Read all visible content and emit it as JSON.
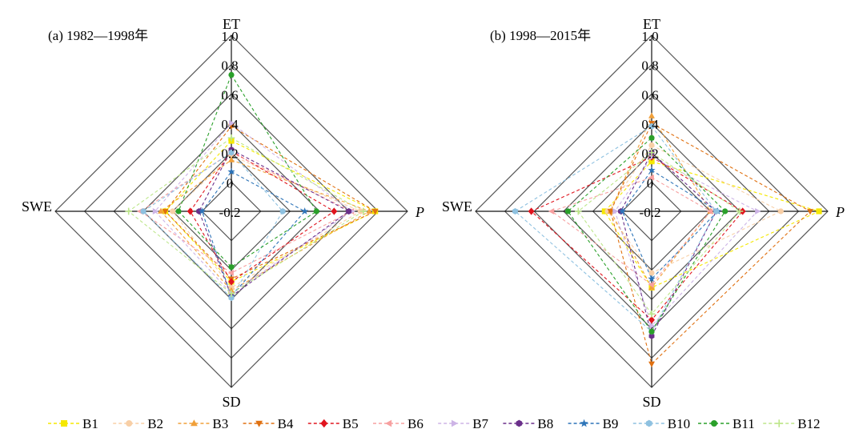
{
  "chart_data": [
    {
      "type": "radar",
      "title": "(a) 1982—1998年",
      "axes": [
        "ET",
        "P",
        "SD",
        "SWE"
      ],
      "r_ticks": [
        "-0.2",
        "0",
        "0.2",
        "0.4",
        "0.6",
        "0.8",
        "1.0"
      ],
      "rlim": [
        -0.2,
        1.0
      ],
      "grid": true,
      "legend": "bottom",
      "series": [
        {
          "name": "B1",
          "values": [
            0.28,
            0.78,
            0.28,
            0.25
          ]
        },
        {
          "name": "B2",
          "values": [
            0.18,
            0.68,
            0.32,
            0.2
          ]
        },
        {
          "name": "B3",
          "values": [
            0.15,
            0.74,
            0.34,
            0.28
          ]
        },
        {
          "name": "B4",
          "values": [
            0.38,
            0.78,
            0.26,
            0.25
          ]
        },
        {
          "name": "B5",
          "values": [
            0.21,
            0.5,
            0.28,
            0.08
          ]
        },
        {
          "name": "B6",
          "values": [
            0.2,
            0.62,
            0.22,
            0.42
          ]
        },
        {
          "name": "B7",
          "values": [
            0.4,
            0.62,
            0.36,
            0.32
          ]
        },
        {
          "name": "B8",
          "values": [
            0.22,
            0.6,
            0.38,
            0.02
          ]
        },
        {
          "name": "B9",
          "values": [
            0.07,
            0.3,
            0.38,
            0.0
          ]
        },
        {
          "name": "B10",
          "values": [
            0.2,
            0.15,
            0.39,
            0.4
          ]
        },
        {
          "name": "B11",
          "values": [
            0.73,
            0.38,
            0.18,
            0.16
          ]
        },
        {
          "name": "B12",
          "values": [
            0.3,
            0.7,
            0.36,
            0.5
          ]
        }
      ]
    },
    {
      "type": "radar",
      "title": "(b) 1998—2015年",
      "axes": [
        "ET",
        "P",
        "SD",
        "SWE"
      ],
      "r_ticks": [
        "-0.2",
        "0",
        "0.2",
        "0.4",
        "0.6",
        "0.8",
        "1.0"
      ],
      "rlim": [
        -0.2,
        1.0
      ],
      "grid": true,
      "legend": "bottom",
      "series": [
        {
          "name": "B1",
          "values": [
            0.14,
            0.94,
            0.32,
            0.12
          ]
        },
        {
          "name": "B2",
          "values": [
            0.25,
            0.68,
            0.22,
            0.1
          ]
        },
        {
          "name": "B3",
          "values": [
            0.45,
            0.2,
            0.32,
            0.08
          ]
        },
        {
          "name": "B4",
          "values": [
            0.4,
            0.88,
            0.84,
            0.08
          ]
        },
        {
          "name": "B5",
          "values": [
            0.17,
            0.42,
            0.54,
            0.62
          ]
        },
        {
          "name": "B6",
          "values": [
            0.03,
            0.2,
            0.3,
            0.48
          ]
        },
        {
          "name": "B7",
          "values": [
            0.17,
            0.52,
            0.58,
            0.05
          ]
        },
        {
          "name": "B8",
          "values": [
            0.2,
            0.24,
            0.65,
            0.01
          ]
        },
        {
          "name": "B9",
          "values": [
            0.08,
            0.25,
            0.26,
            0.0
          ]
        },
        {
          "name": "B10",
          "values": [
            0.38,
            0.24,
            0.62,
            0.73
          ]
        },
        {
          "name": "B11",
          "values": [
            0.3,
            0.3,
            0.62,
            0.37
          ]
        },
        {
          "name": "B12",
          "values": [
            0.2,
            0.4,
            0.5,
            0.3
          ]
        }
      ]
    }
  ],
  "legend_items": [
    {
      "name": "B1",
      "color": "#f5e800",
      "marker": "square"
    },
    {
      "name": "B2",
      "color": "#f8cfa6",
      "marker": "circle"
    },
    {
      "name": "B3",
      "color": "#f0a03a",
      "marker": "triangle-up"
    },
    {
      "name": "B4",
      "color": "#e07010",
      "marker": "triangle-down"
    },
    {
      "name": "B5",
      "color": "#e0141e",
      "marker": "diamond"
    },
    {
      "name": "B6",
      "color": "#f7a0a0",
      "marker": "triangle-left"
    },
    {
      "name": "B7",
      "color": "#cdb4e6",
      "marker": "triangle-right"
    },
    {
      "name": "B8",
      "color": "#6a2f8a",
      "marker": "hexagon"
    },
    {
      "name": "B9",
      "color": "#2d74b8",
      "marker": "star"
    },
    {
      "name": "B10",
      "color": "#8ec1e0",
      "marker": "hexagon"
    },
    {
      "name": "B11",
      "color": "#2aa02a",
      "marker": "circle"
    },
    {
      "name": "B12",
      "color": "#bde68a",
      "marker": "plus"
    }
  ]
}
